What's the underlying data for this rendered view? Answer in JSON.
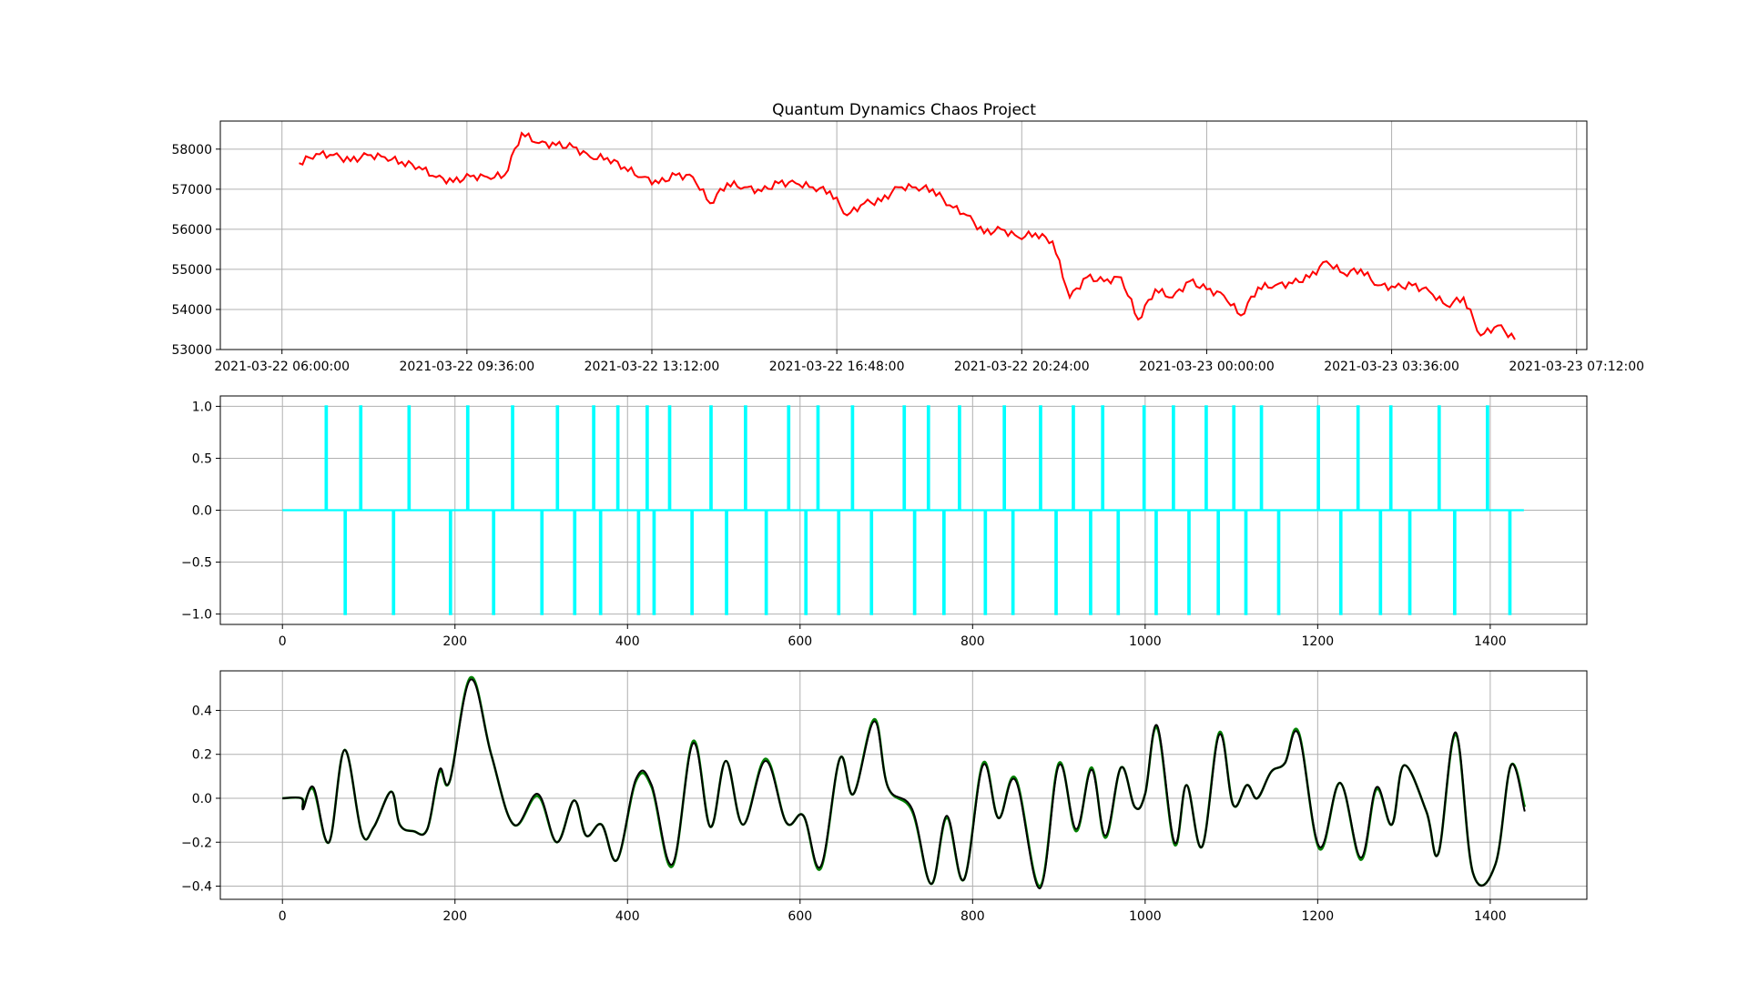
{
  "chart_data": [
    {
      "type": "line",
      "title": "Quantum Dynamics Chaos Project",
      "xlabel": "",
      "ylabel": "",
      "x_type": "datetime",
      "xlim": [
        "2021-03-22 04:48:00",
        "2021-03-23 07:24:00"
      ],
      "ylim": [
        53000,
        58700
      ],
      "grid": true,
      "x_ticks": [
        "2021-03-22 06:00:00",
        "2021-03-22 09:36:00",
        "2021-03-22 13:12:00",
        "2021-03-22 16:48:00",
        "2021-03-22 20:24:00",
        "2021-03-23 00:00:00",
        "2021-03-23 03:36:00",
        "2021-03-23 07:12:00"
      ],
      "y_ticks": [
        "53000",
        "54000",
        "55000",
        "56000",
        "57000",
        "58000"
      ],
      "series": [
        {
          "color": "#ff0000",
          "x": [
            "2021-03-22 06:20:00",
            "2021-03-22 06:40:00",
            "2021-03-22 07:00:00",
            "2021-03-22 07:20:00",
            "2021-03-22 07:40:00",
            "2021-03-22 08:00:00",
            "2021-03-22 08:20:00",
            "2021-03-22 08:40:00",
            "2021-03-22 09:00:00",
            "2021-03-22 09:20:00",
            "2021-03-22 09:40:00",
            "2021-03-22 10:00:00",
            "2021-03-22 10:20:00",
            "2021-03-22 10:40:00",
            "2021-03-22 11:00:00",
            "2021-03-22 11:20:00",
            "2021-03-22 11:40:00",
            "2021-03-22 12:00:00",
            "2021-03-22 12:20:00",
            "2021-03-22 12:40:00",
            "2021-03-22 13:00:00",
            "2021-03-22 13:20:00",
            "2021-03-22 13:40:00",
            "2021-03-22 14:00:00",
            "2021-03-22 14:20:00",
            "2021-03-22 14:40:00",
            "2021-03-22 15:00:00",
            "2021-03-22 15:20:00",
            "2021-03-22 15:40:00",
            "2021-03-22 16:00:00",
            "2021-03-22 16:20:00",
            "2021-03-22 16:40:00",
            "2021-03-22 17:00:00",
            "2021-03-22 17:20:00",
            "2021-03-22 17:40:00",
            "2021-03-22 18:00:00",
            "2021-03-22 18:20:00",
            "2021-03-22 18:40:00",
            "2021-03-22 19:00:00",
            "2021-03-22 19:20:00",
            "2021-03-22 19:40:00",
            "2021-03-22 20:00:00",
            "2021-03-22 20:20:00",
            "2021-03-22 20:40:00",
            "2021-03-22 21:00:00",
            "2021-03-22 21:20:00",
            "2021-03-22 21:40:00",
            "2021-03-22 22:00:00",
            "2021-03-22 22:20:00",
            "2021-03-22 22:40:00",
            "2021-03-22 23:00:00",
            "2021-03-22 23:20:00",
            "2021-03-22 23:40:00",
            "2021-03-23 00:00:00",
            "2021-03-23 00:20:00",
            "2021-03-23 00:40:00",
            "2021-03-23 01:00:00",
            "2021-03-23 01:20:00",
            "2021-03-23 01:40:00",
            "2021-03-23 02:00:00",
            "2021-03-23 02:20:00",
            "2021-03-23 02:40:00",
            "2021-03-23 03:00:00",
            "2021-03-23 03:20:00",
            "2021-03-23 03:40:00",
            "2021-03-23 04:00:00",
            "2021-03-23 04:20:00",
            "2021-03-23 04:40:00",
            "2021-03-23 05:00:00",
            "2021-03-23 05:20:00",
            "2021-03-23 05:40:00",
            "2021-03-23 06:00:00"
          ],
          "values": [
            57650,
            57880,
            57850,
            57700,
            57850,
            57800,
            57680,
            57560,
            57300,
            57180,
            57320,
            57300,
            57350,
            58400,
            58150,
            58100,
            58050,
            57800,
            57780,
            57550,
            57300,
            57150,
            57350,
            57300,
            56650,
            57150,
            57050,
            56950,
            57150,
            57150,
            57050,
            56950,
            56350,
            56650,
            56700,
            57050,
            57050,
            57000,
            56600,
            56350,
            55900,
            56000,
            55800,
            55900,
            55700,
            54300,
            54800,
            54700,
            54800,
            53750,
            54500,
            54300,
            54700,
            54500,
            54350,
            53850,
            54550,
            54600,
            54650,
            54800,
            55200,
            54900,
            55000,
            54600,
            54550,
            54600,
            54450,
            54100,
            54300,
            53350,
            53600,
            53250
          ]
        }
      ]
    },
    {
      "type": "line",
      "title": "",
      "xlabel": "",
      "ylabel": "",
      "xlim": [
        -72,
        1512
      ],
      "ylim": [
        -1.1,
        1.1
      ],
      "grid": true,
      "x_ticks": [
        "0",
        "200",
        "400",
        "600",
        "800",
        "1000",
        "1200",
        "1400"
      ],
      "y_ticks": [
        "1.0",
        "0.5",
        "0.0",
        "−0.5",
        "−1.0"
      ],
      "series": [
        {
          "color": "#00ffff",
          "x_range": [
            0,
            1439
          ],
          "baseline": 0,
          "positive_spikes": [
            50,
            90,
            146,
            214,
            266,
            318,
            360,
            388,
            422,
            448,
            496,
            536,
            586,
            620,
            660,
            720,
            748,
            784,
            836,
            878,
            916,
            950,
            998,
            1032,
            1070,
            1102,
            1134,
            1200,
            1246,
            1284,
            1340,
            1396
          ],
          "negative_spikes": [
            72,
            128,
            194,
            244,
            300,
            338,
            368,
            412,
            430,
            474,
            514,
            560,
            606,
            644,
            682,
            732,
            766,
            814,
            846,
            896,
            936,
            968,
            1012,
            1050,
            1084,
            1116,
            1154,
            1226,
            1272,
            1306,
            1358,
            1422
          ]
        }
      ]
    },
    {
      "type": "line",
      "title": "",
      "xlabel": "",
      "ylabel": "",
      "xlim": [
        -72,
        1512
      ],
      "ylim": [
        -0.46,
        0.58
      ],
      "grid": true,
      "x_ticks": [
        "0",
        "200",
        "400",
        "600",
        "800",
        "1000",
        "1200",
        "1400"
      ],
      "y_ticks": [
        "0.4",
        "0.2",
        "0.0",
        "−0.2",
        "−0.4"
      ],
      "series": [
        {
          "color": "#008000",
          "x": [
            0,
            22,
            24,
            36,
            54,
            72,
            92,
            106,
            126,
            136,
            152,
            168,
            182,
            194,
            218,
            242,
            268,
            296,
            318,
            338,
            352,
            370,
            388,
            410,
            428,
            452,
            476,
            496,
            514,
            534,
            560,
            584,
            604,
            624,
            646,
            662,
            686,
            702,
            730,
            752,
            770,
            790,
            812,
            830,
            850,
            878,
            900,
            920,
            938,
            954,
            972,
            988,
            1000,
            1014,
            1034,
            1048,
            1066,
            1086,
            1102,
            1118,
            1130,
            1146,
            1162,
            1178,
            1202,
            1226,
            1250,
            1268,
            1286,
            1300,
            1326,
            1340,
            1360,
            1380,
            1406,
            1424,
            1440
          ],
          "values": [
            0.0,
            0.0,
            -0.04,
            0.04,
            -0.2,
            0.22,
            -0.16,
            -0.13,
            0.03,
            -0.12,
            -0.15,
            -0.14,
            0.12,
            0.08,
            0.55,
            0.2,
            -0.12,
            0.01,
            -0.2,
            -0.01,
            -0.17,
            -0.12,
            -0.28,
            0.08,
            0.05,
            -0.31,
            0.26,
            -0.13,
            0.17,
            -0.12,
            0.18,
            -0.11,
            -0.08,
            -0.32,
            0.18,
            0.02,
            0.36,
            0.05,
            -0.06,
            -0.39,
            -0.09,
            -0.37,
            0.16,
            -0.09,
            0.09,
            -0.4,
            0.16,
            -0.15,
            0.14,
            -0.18,
            0.14,
            -0.04,
            0.02,
            0.32,
            -0.21,
            0.06,
            -0.22,
            0.3,
            -0.03,
            0.06,
            0.0,
            0.12,
            0.16,
            0.3,
            -0.23,
            0.07,
            -0.28,
            0.04,
            -0.12,
            0.15,
            -0.06,
            -0.25,
            0.29,
            -0.34,
            -0.3,
            0.15,
            -0.04
          ]
        },
        {
          "color": "#000000",
          "x": [
            0,
            22,
            24,
            36,
            54,
            72,
            92,
            106,
            126,
            136,
            152,
            168,
            182,
            194,
            218,
            242,
            268,
            296,
            318,
            338,
            352,
            370,
            388,
            410,
            428,
            452,
            476,
            496,
            514,
            534,
            560,
            584,
            604,
            624,
            646,
            662,
            686,
            702,
            730,
            752,
            770,
            790,
            812,
            830,
            850,
            878,
            900,
            920,
            938,
            954,
            972,
            988,
            1000,
            1014,
            1034,
            1048,
            1066,
            1086,
            1102,
            1118,
            1130,
            1146,
            1162,
            1178,
            1202,
            1226,
            1250,
            1268,
            1286,
            1300,
            1326,
            1340,
            1360,
            1380,
            1406,
            1424,
            1440
          ],
          "values": [
            0.0,
            0.0,
            -0.05,
            0.05,
            -0.2,
            0.22,
            -0.16,
            -0.13,
            0.03,
            -0.12,
            -0.15,
            -0.14,
            0.13,
            0.08,
            0.54,
            0.2,
            -0.12,
            0.02,
            -0.2,
            -0.01,
            -0.17,
            -0.12,
            -0.28,
            0.09,
            0.06,
            -0.3,
            0.25,
            -0.13,
            0.17,
            -0.12,
            0.17,
            -0.11,
            -0.08,
            -0.31,
            0.18,
            0.02,
            0.35,
            0.05,
            -0.05,
            -0.39,
            -0.08,
            -0.37,
            0.15,
            -0.09,
            0.08,
            -0.41,
            0.15,
            -0.14,
            0.13,
            -0.17,
            0.14,
            -0.04,
            0.02,
            0.33,
            -0.2,
            0.06,
            -0.22,
            0.29,
            -0.03,
            0.06,
            0.0,
            0.12,
            0.16,
            0.29,
            -0.22,
            0.07,
            -0.27,
            0.05,
            -0.12,
            0.15,
            -0.06,
            -0.25,
            0.3,
            -0.34,
            -0.3,
            0.15,
            -0.06
          ]
        }
      ]
    }
  ]
}
